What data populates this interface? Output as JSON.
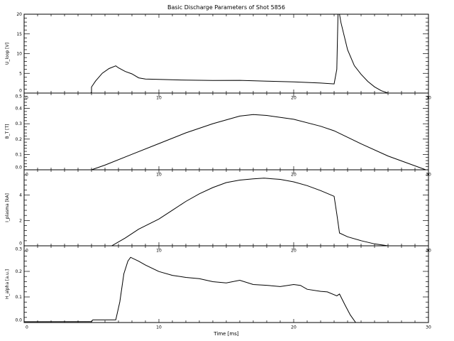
{
  "chart_data": {
    "type": "line",
    "title": "Basic Discharge Parameters of Shot 5856",
    "xlabel": "Time [ms]",
    "xlim": [
      0,
      30
    ],
    "xticks": [
      "0",
      "10",
      "20",
      "30"
    ],
    "panels": [
      {
        "ylabel": "U_loop [V]",
        "ylim": [
          0,
          20
        ],
        "yticks": [
          "0",
          "5",
          "10",
          "15",
          "20"
        ],
        "x": [
          0,
          4.95,
          5.0,
          5.0,
          5.3,
          5.8,
          6.3,
          6.8,
          7.0,
          7.5,
          8.0,
          8.5,
          9.0,
          10,
          12,
          14,
          16,
          18,
          20,
          22,
          23.0,
          23.2,
          23.3,
          23.5,
          24,
          24.5,
          25,
          25.5,
          26,
          26.5,
          27
        ],
        "y": [
          0,
          0,
          0.3,
          1.5,
          3.0,
          5.0,
          6.2,
          6.9,
          6.4,
          5.5,
          4.9,
          3.9,
          3.6,
          3.5,
          3.3,
          3.2,
          3.2,
          3.0,
          2.8,
          2.5,
          2.3,
          6,
          22,
          18,
          11,
          7,
          4.8,
          3.0,
          1.6,
          0.6,
          0
        ]
      },
      {
        "ylabel": "B_T [T]",
        "ylim": [
          0,
          0.5
        ],
        "yticks": [
          "0.0",
          "0.1",
          "0.2",
          "0.3",
          "0.4",
          "0.5"
        ],
        "x": [
          0,
          5.0,
          6,
          8,
          10,
          12,
          14,
          16,
          17,
          18,
          20,
          22,
          23,
          25,
          27,
          29.8
        ],
        "y": [
          0,
          0,
          0.03,
          0.1,
          0.17,
          0.24,
          0.3,
          0.35,
          0.36,
          0.355,
          0.33,
          0.285,
          0.255,
          0.17,
          0.09,
          0
        ]
      },
      {
        "ylabel": "I_plasma [kA]",
        "ylim": [
          0,
          6
        ],
        "yticks": [
          "0",
          "2",
          "4"
        ],
        "x": [
          0,
          6.5,
          7.5,
          8.5,
          10,
          11,
          12,
          13,
          14,
          15,
          16,
          17,
          17.8,
          19,
          20,
          21,
          22,
          23,
          23.2,
          23.4,
          24,
          25,
          26,
          27
        ],
        "y": [
          0,
          0,
          0.6,
          1.3,
          2.1,
          2.8,
          3.5,
          4.1,
          4.6,
          5.0,
          5.2,
          5.3,
          5.35,
          5.25,
          5.05,
          4.75,
          4.35,
          3.9,
          2.5,
          1.0,
          0.7,
          0.4,
          0.15,
          0
        ]
      },
      {
        "ylabel": "H_alpha [a.u.]",
        "ylim": [
          0,
          0.3
        ],
        "yticks": [
          "0.0",
          "0.1",
          "0.2",
          "0.3"
        ],
        "x": [
          0,
          5.0,
          5.1,
          6.8,
          7.1,
          7.4,
          7.7,
          7.9,
          8.5,
          9,
          10,
          11,
          12,
          13,
          14,
          15,
          16,
          17,
          18,
          19,
          20,
          20.5,
          21,
          22,
          22.5,
          23.2,
          23.4,
          23.8,
          24.2,
          24.6,
          30
        ],
        "y": [
          0.003,
          0.003,
          0.01,
          0.01,
          0.08,
          0.19,
          0.24,
          0.255,
          0.24,
          0.225,
          0.2,
          0.185,
          0.177,
          0.172,
          0.16,
          0.155,
          0.165,
          0.148,
          0.145,
          0.14,
          0.148,
          0.145,
          0.13,
          0.122,
          0.12,
          0.105,
          0.112,
          0.07,
          0.03,
          0,
          0
        ]
      }
    ]
  }
}
